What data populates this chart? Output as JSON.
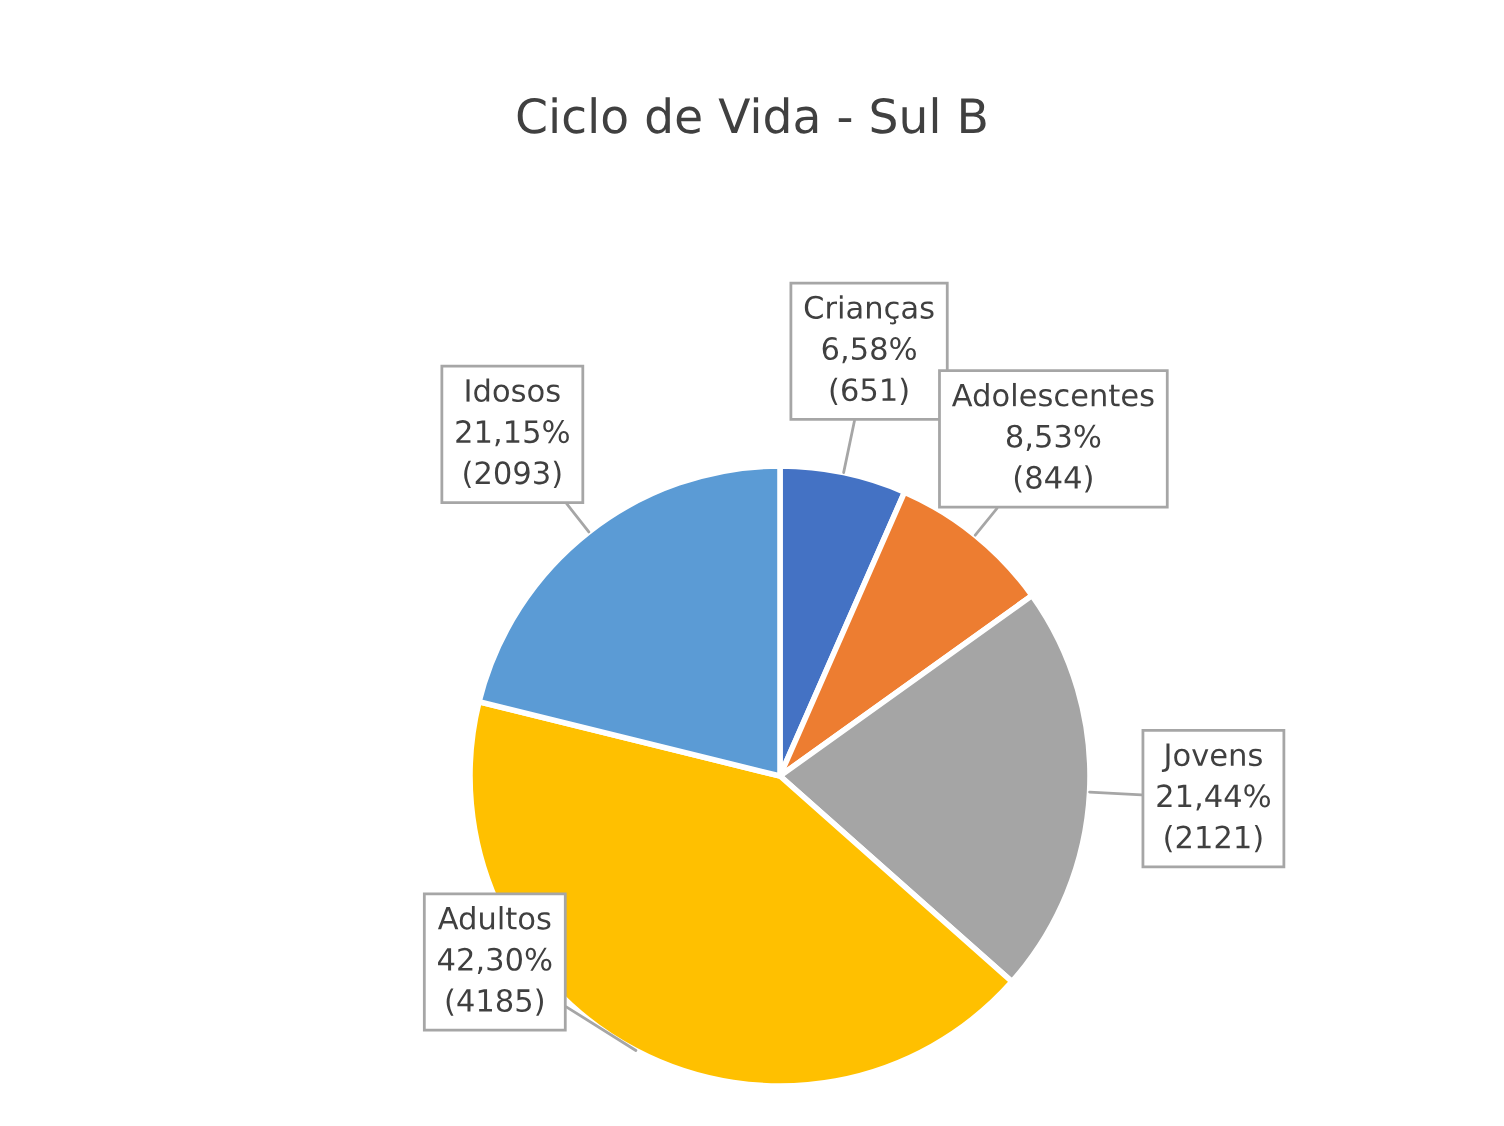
{
  "chart_data": {
    "type": "pie",
    "title": "Ciclo de Vida - Sul B",
    "categories": [
      "Crianças",
      "Adolescentes",
      "Jovens",
      "Adultos",
      "Idosos"
    ],
    "values": [
      651,
      844,
      2121,
      4185,
      2093
    ],
    "value_labels": [
      "6,58%\n(651)",
      "8,53%\n(844)",
      "21,44%\n(2121)",
      "42,30%\n(4185)",
      "21,15%\n(2093)"
    ],
    "colors": [
      "#4472c4",
      "#ed7d31",
      "#a5a5a5",
      "#ffc000",
      "#5b9bd5"
    ],
    "legend": false
  }
}
